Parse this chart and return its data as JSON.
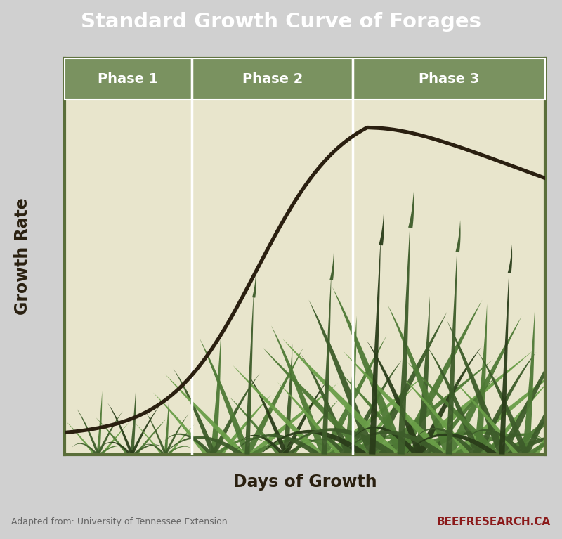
{
  "title": "Standard Growth Curve of Forages",
  "title_bg_color": "#4a3728",
  "title_text_color": "#ffffff",
  "outer_bg_color": "#d0d0d0",
  "chart_bg_color": "#e8e5cc",
  "phase_header_color": "#7a9260",
  "phase_label_color": "#ffffff",
  "phases": [
    "Phase 1",
    "Phase 2",
    "Phase 3"
  ],
  "phase_boundaries": [
    0.0,
    0.265,
    0.6,
    1.0
  ],
  "xlabel": "Days of Growth",
  "ylabel": "Growth Rate",
  "axis_border_color": "#5a6e3a",
  "curve_color": "#2a1f10",
  "source_text": "Adapted from: University of Tennessee Extension",
  "source_color": "#666666",
  "brand_text": "BEEFRESEARCH.CA",
  "brand_color": "#8b1a1a",
  "footer_bg_color": "#c8c8c8",
  "grass_dark": "#3d5c2a",
  "grass_mid": "#4e7a35",
  "grass_light": "#6a9e48",
  "grass_darkest": "#2a3d1a"
}
